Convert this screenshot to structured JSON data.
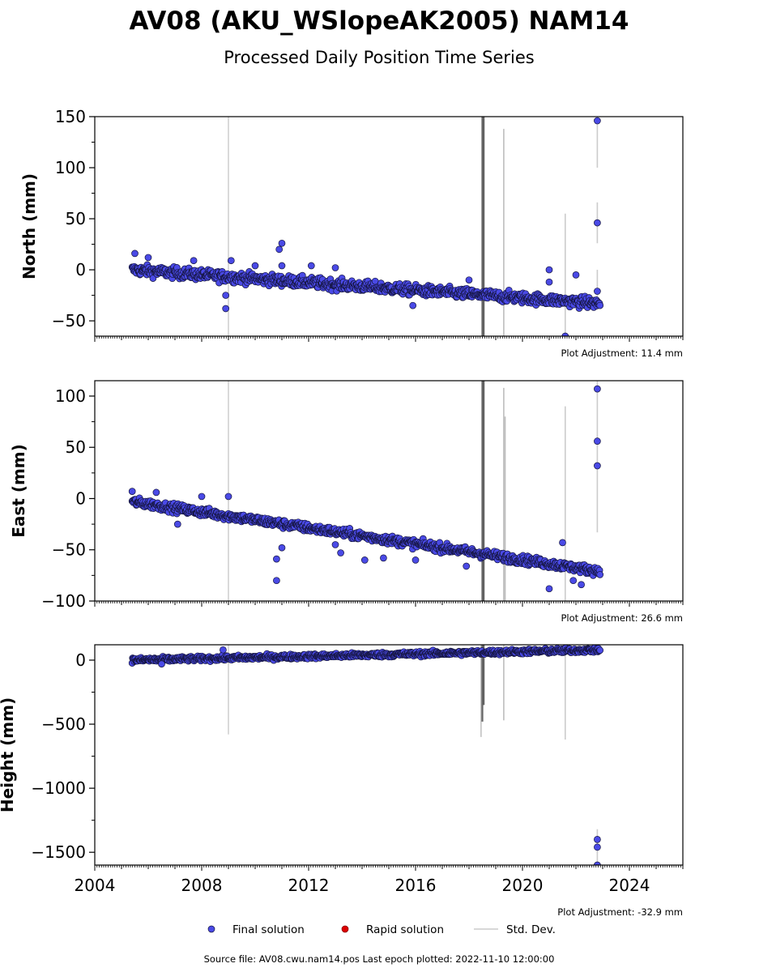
{
  "title": "AV08 (AKU_WSlopeAK2005) NAM14",
  "subtitle": "Processed Daily Position Time Series",
  "footer": "Source file: AV08.cwu.nam14.pos  Last epoch plotted: 2022-11-10 12:00:00",
  "legend": {
    "position": "bottom-center",
    "items": [
      {
        "label": "Final solution",
        "color": "#4a4ae6",
        "marker": "dot"
      },
      {
        "label": "Rapid solution",
        "color": "#dd0000",
        "marker": "dot"
      },
      {
        "label": "Std. Dev.",
        "color": "#cccccc",
        "marker": "line"
      }
    ]
  },
  "chart_data": [
    {
      "type": "scatter",
      "ylabel": "North (mm)",
      "adjustment": "Plot Adjustment: 11.4 mm",
      "xlim": [
        2004,
        2026
      ],
      "ylim": [
        -65,
        150
      ],
      "yticks": [
        -50,
        0,
        50,
        100,
        150
      ],
      "xticks": [],
      "trend": {
        "start": [
          2005.4,
          0
        ],
        "end": [
          2022.9,
          -33
        ]
      },
      "noise": 5,
      "outliers": [
        [
          2005.5,
          16
        ],
        [
          2006.0,
          12
        ],
        [
          2007.7,
          9
        ],
        [
          2008.9,
          -38
        ],
        [
          2008.9,
          -25
        ],
        [
          2009.1,
          9
        ],
        [
          2010.0,
          4
        ],
        [
          2010.9,
          20
        ],
        [
          2011.0,
          26
        ],
        [
          2011.0,
          4
        ],
        [
          2012.1,
          4
        ],
        [
          2013.0,
          2
        ],
        [
          2015.9,
          -35
        ],
        [
          2018.0,
          -10
        ],
        [
          2021.0,
          0
        ],
        [
          2021.0,
          -12
        ],
        [
          2021.6,
          -65
        ],
        [
          2022.0,
          -5
        ],
        [
          2022.8,
          146
        ],
        [
          2022.8,
          46
        ],
        [
          2022.8,
          -21
        ]
      ],
      "stddev_lines": [
        [
          2009.0,
          -65,
          150,
          0.25
        ],
        [
          2018.5,
          -65,
          150,
          0.9
        ],
        [
          2018.55,
          -65,
          150,
          0.7
        ],
        [
          2019.3,
          -65,
          138,
          0.45
        ],
        [
          2021.6,
          -65,
          55,
          0.3
        ],
        [
          2022.8,
          100,
          150,
          0.3
        ],
        [
          2022.8,
          26,
          66,
          0.3
        ],
        [
          2022.8,
          -30,
          0,
          0.3
        ]
      ]
    },
    {
      "type": "scatter",
      "ylabel": "East (mm)",
      "adjustment": "Plot Adjustment: 26.6 mm",
      "xlim": [
        2004,
        2026
      ],
      "ylim": [
        -100,
        115
      ],
      "yticks": [
        -100,
        -50,
        0,
        50,
        100
      ],
      "xticks": [],
      "trend": {
        "start": [
          2005.4,
          -3
        ],
        "end": [
          2022.9,
          -71
        ]
      },
      "noise": 4,
      "outliers": [
        [
          2005.4,
          7
        ],
        [
          2006.3,
          6
        ],
        [
          2007.1,
          -25
        ],
        [
          2008.0,
          2
        ],
        [
          2009.0,
          2
        ],
        [
          2010.8,
          -80
        ],
        [
          2010.8,
          -59
        ],
        [
          2011.0,
          -48
        ],
        [
          2013.0,
          -45
        ],
        [
          2013.2,
          -53
        ],
        [
          2014.1,
          -60
        ],
        [
          2014.8,
          -58
        ],
        [
          2016.0,
          -60
        ],
        [
          2017.9,
          -66
        ],
        [
          2021.0,
          -88
        ],
        [
          2021.5,
          -43
        ],
        [
          2021.9,
          -80
        ],
        [
          2022.2,
          -84
        ],
        [
          2022.8,
          107
        ],
        [
          2022.8,
          56
        ],
        [
          2022.8,
          32
        ]
      ],
      "stddev_lines": [
        [
          2009.0,
          -100,
          115,
          0.25
        ],
        [
          2018.5,
          -100,
          115,
          0.9
        ],
        [
          2018.55,
          -100,
          115,
          0.7
        ],
        [
          2019.3,
          -100,
          108,
          0.45
        ],
        [
          2019.35,
          -100,
          80,
          0.45
        ],
        [
          2021.6,
          -100,
          90,
          0.3
        ],
        [
          2022.8,
          -33,
          115,
          0.3
        ]
      ]
    },
    {
      "type": "scatter",
      "ylabel": "Height (mm)",
      "adjustment": "Plot Adjustment: -32.9 mm",
      "xlim": [
        2004,
        2026
      ],
      "ylim": [
        -1600,
        120
      ],
      "yticks": [
        -1500,
        -1000,
        -500,
        0
      ],
      "xticks": [
        2004,
        2008,
        2012,
        2016,
        2020,
        2024
      ],
      "trend": {
        "start": [
          2005.4,
          0
        ],
        "end": [
          2022.9,
          80
        ]
      },
      "noise": 18,
      "outliers": [
        [
          2006.5,
          -30
        ],
        [
          2008.8,
          80
        ],
        [
          2022.8,
          -1400
        ],
        [
          2022.8,
          -1460
        ],
        [
          2022.8,
          -1600
        ]
      ],
      "stddev_lines": [
        [
          2009.0,
          -580,
          120,
          0.25
        ],
        [
          2018.45,
          -600,
          120,
          0.4
        ],
        [
          2018.5,
          -480,
          120,
          0.9
        ],
        [
          2018.55,
          -350,
          120,
          0.7
        ],
        [
          2019.3,
          -470,
          120,
          0.45
        ],
        [
          2021.6,
          -620,
          120,
          0.3
        ],
        [
          2022.8,
          -1320,
          -1600,
          0.3
        ]
      ]
    }
  ]
}
